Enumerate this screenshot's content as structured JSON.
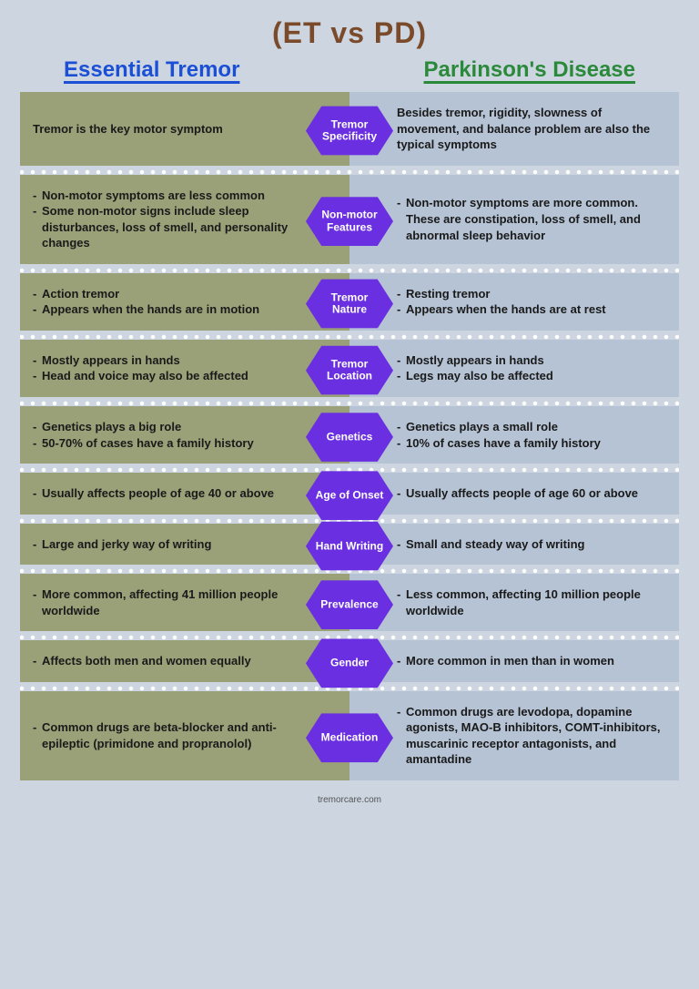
{
  "colors": {
    "page_bg": "#ccd5e0",
    "title": "#7a4a2a",
    "et_header": "#1a4fd6",
    "pd_header": "#2a8a3a",
    "left_cell_bg": "#9aa078",
    "right_cell_bg": "#b5c3d4",
    "badge_bg": "#6a2fe0",
    "badge_text": "#ffffff",
    "divider_dot": "#ffffff",
    "body_text": "#1a1a1a"
  },
  "typography": {
    "title_pt": 32,
    "header_pt": 24,
    "cell_pt": 13,
    "badge_pt": 12,
    "footer_pt": 10,
    "family": "Arial",
    "weight_heavy": 800,
    "weight_cell": 700
  },
  "title": "(ET  vs  PD)",
  "headers": {
    "et": "Essential Tremor",
    "pd": "Parkinson's Disease"
  },
  "footer": "tremorcare.com",
  "rows": [
    {
      "badge": "Tremor Specificity",
      "et_plain": "Tremor is the key motor symptom",
      "pd_plain": "Besides tremor, rigidity, slowness of movement, and balance problem are also the typical symptoms"
    },
    {
      "badge": "Non-motor Features",
      "et_list": [
        "Non-motor symptoms are less common",
        "Some non-motor signs include sleep disturbances, loss of smell, and personality changes"
      ],
      "pd_list": [
        "Non-motor symptoms are more common. These are constipation, loss of smell, and abnormal sleep behavior"
      ]
    },
    {
      "badge": "Tremor Nature",
      "et_list": [
        "Action tremor",
        "Appears when the hands are in motion"
      ],
      "pd_list": [
        "Resting tremor",
        "Appears when the hands are at rest"
      ]
    },
    {
      "badge": "Tremor Location",
      "et_list": [
        "Mostly appears in hands",
        "Head and voice may also be affected"
      ],
      "pd_list": [
        "Mostly appears in hands",
        "Legs may also be affected"
      ]
    },
    {
      "badge": "Genetics",
      "et_list": [
        "Genetics plays a big role",
        "50-70% of cases have a family history"
      ],
      "pd_list": [
        "Genetics plays a small role",
        "10% of cases have a family history"
      ]
    },
    {
      "badge": "Age of Onset",
      "et_list": [
        "Usually affects people of age 40 or above"
      ],
      "pd_list": [
        "Usually affects people of age 60 or above"
      ]
    },
    {
      "badge": "Hand Writing",
      "et_list": [
        "Large and jerky way of writing"
      ],
      "pd_list": [
        "Small and steady way of writing"
      ]
    },
    {
      "badge": "Prevalence",
      "et_list": [
        "More common, affecting 41 million people worldwide"
      ],
      "pd_list": [
        "Less common, affecting 10 million people worldwide"
      ]
    },
    {
      "badge": "Gender",
      "et_list": [
        "Affects both men and women equally"
      ],
      "pd_list": [
        "More common in men than in women"
      ]
    },
    {
      "badge": "Medication",
      "et_list": [
        "Common drugs are beta-blocker and anti-epileptic (primidone and propranolol)"
      ],
      "pd_list": [
        "Common drugs are levodopa, dopamine agonists, MAO-B inhibitors, COMT-inhibitors, muscarinic receptor antagonists, and amantadine"
      ]
    }
  ]
}
